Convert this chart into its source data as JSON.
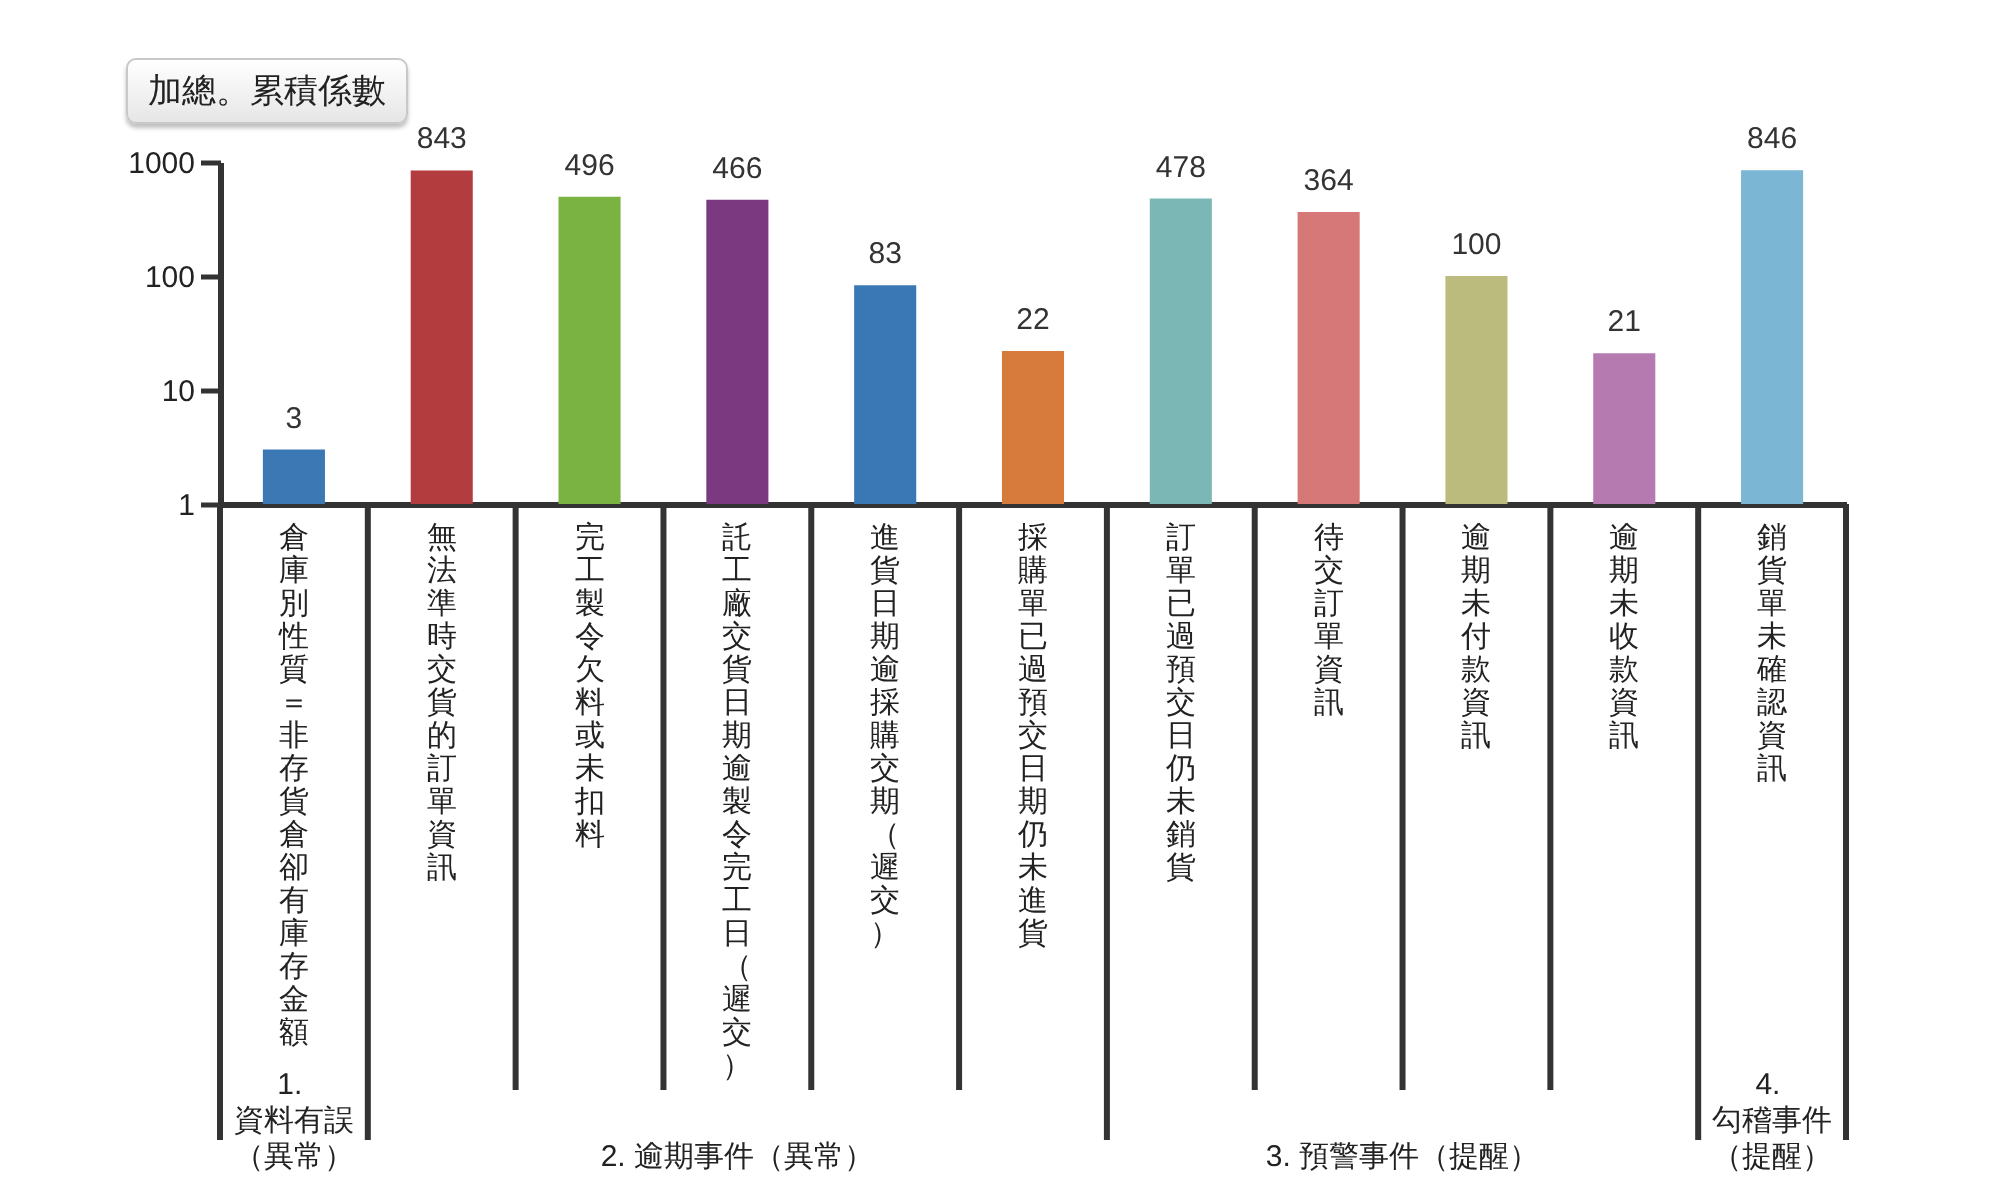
{
  "chart_data": {
    "type": "bar",
    "ylabel": "加總。累積係數",
    "categories": [
      "倉庫別性質＝非存貨倉卻有庫存金額",
      "無法準時交貨的訂單資訊",
      "完工製令欠料或未扣料",
      "託工廠交貨日期逾製令完工日（遲交）",
      "進貨日期逾採購交期（遲交）",
      "採購單已過預交日期仍未進貨",
      "訂單已過預交日仍未銷貨",
      "待交訂單資訊",
      "逾期未付款資訊",
      "逾期未收款資訊",
      "銷貨單未確認資訊"
    ],
    "values": [
      3,
      843,
      496,
      466,
      83,
      22,
      478,
      364,
      100,
      21,
      846
    ],
    "colors": [
      "#3b78b4",
      "#b33c3f",
      "#7ab342",
      "#7b3a7f",
      "#3a78b5",
      "#d77b3c",
      "#7bb8b5",
      "#d77878",
      "#bbbb7e",
      "#b57bb0",
      "#7bb6d5"
    ],
    "log": "y",
    "ylim": [
      1,
      1000
    ],
    "yticks": [
      1,
      10,
      100,
      1000
    ],
    "data_labels": true,
    "annotations": [
      "1. 資料有誤（異常）",
      "2. 逾期事件（異常）",
      "3. 預警事件（提醒）",
      "4. 勾稽事件（提醒）"
    ]
  }
}
